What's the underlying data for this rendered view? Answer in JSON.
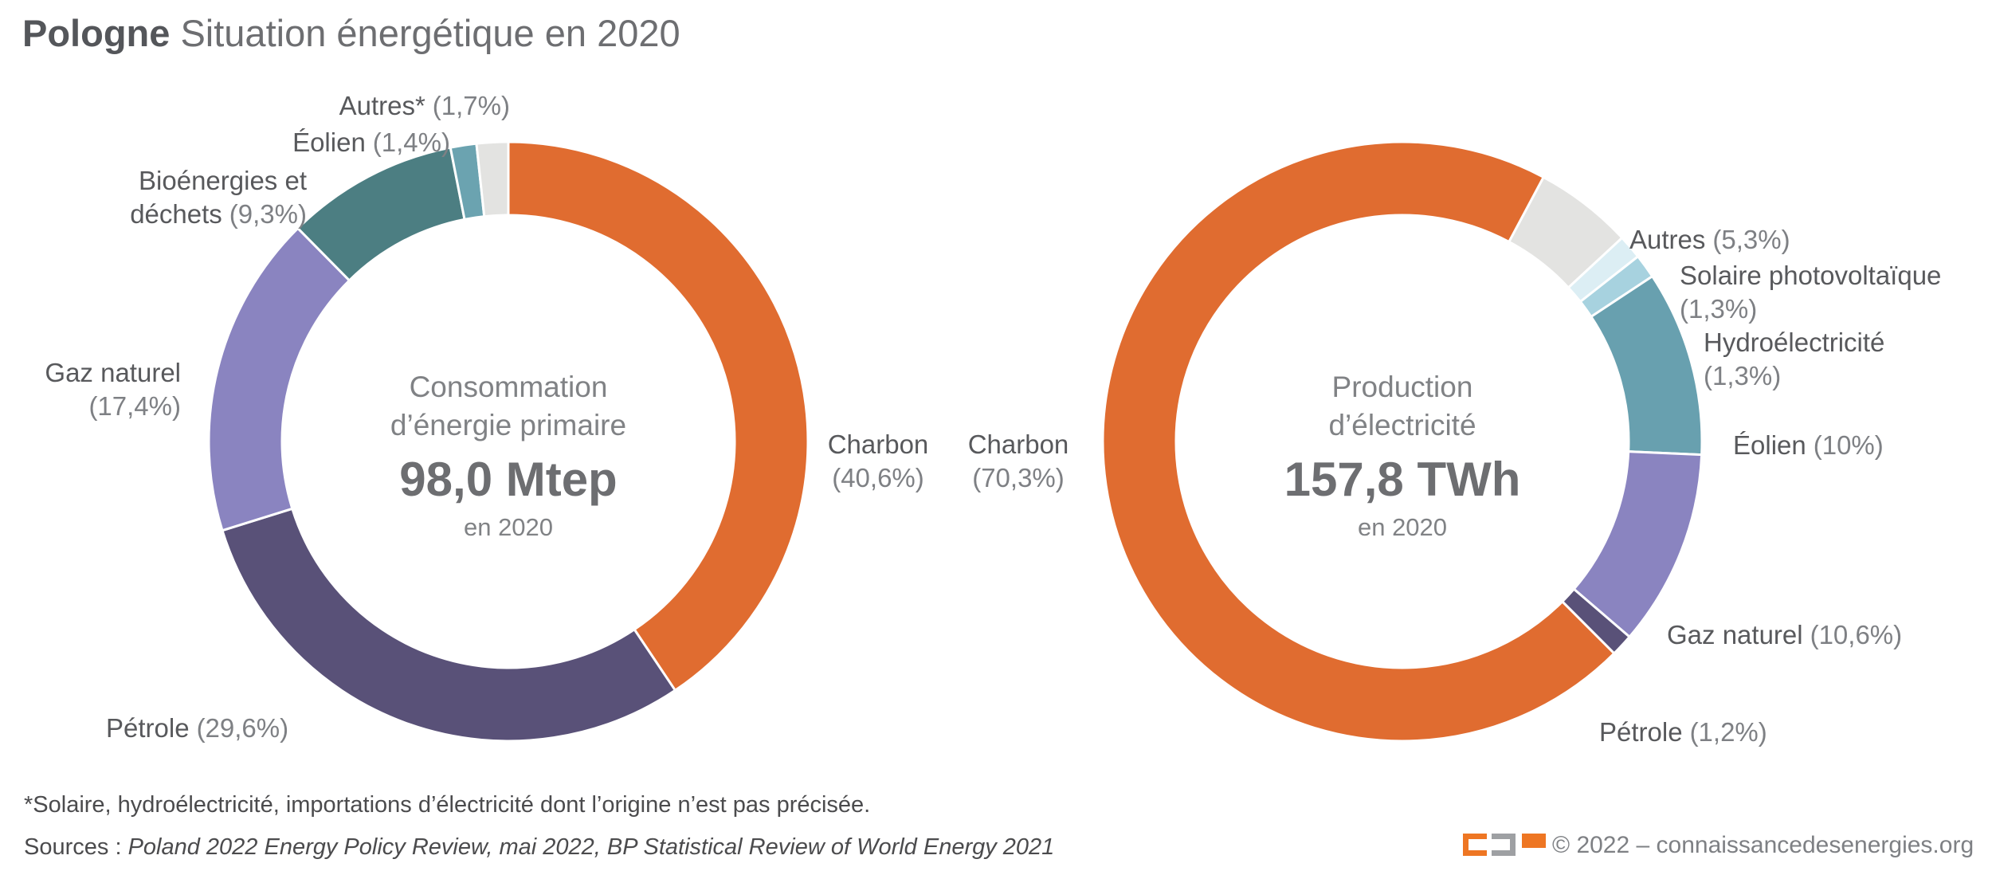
{
  "title": {
    "bold": "Pologne",
    "rest": " Situation énergétique en 2020"
  },
  "centers": {
    "left": {
      "line1": "Consommation",
      "line2": "d’énergie primaire",
      "value": "98,0 Mtep",
      "year": "en 2020"
    },
    "right": {
      "line1": "Production",
      "line2": "d’électricité",
      "value": "157,8 TWh",
      "year": "en 2020"
    }
  },
  "callouts": {
    "pc_autres": {
      "name": "Autres*",
      "pct": "(1,7%)"
    },
    "pc_eolien": {
      "name": "Éolien",
      "pct": "(1,4%)"
    },
    "pc_bio": {
      "line1": "Bioénergies et",
      "line2": "déchets",
      "pct": "(9,3%)"
    },
    "pc_gaz": {
      "name": "Gaz naturel",
      "pct": "(17,4%)"
    },
    "pc_petrole": {
      "name": "Pétrole",
      "pct": "(29,6%)"
    },
    "pc_charbon": {
      "name": "Charbon",
      "pct": "(40,6%)"
    },
    "el_charbon": {
      "name": "Charbon",
      "pct": "(70,3%)"
    },
    "el_autres": {
      "name": "Autres",
      "pct": "(5,3%)"
    },
    "el_solaire": {
      "name": "Solaire photovoltaïque",
      "pct": "(1,3%)"
    },
    "el_hydro": {
      "name": "Hydroélectricité",
      "pct": "(1,3%)"
    },
    "el_eolien": {
      "name": "Éolien",
      "pct": "(10%)"
    },
    "el_gaz": {
      "name": "Gaz naturel",
      "pct": "(10,6%)"
    },
    "el_petrole": {
      "name": "Pétrole",
      "pct": "(1,2%)"
    }
  },
  "chart_data": [
    {
      "type": "pie",
      "subtype": "donut",
      "id": "primary-energy",
      "title": "Consommation d’énergie primaire",
      "center_value": "98,0 Mtep",
      "center_note": "en 2020",
      "unit": "Mtep",
      "total": 98.0,
      "direction": "clockwise",
      "start_angle_deg": 0,
      "segments": [
        {
          "label": "Charbon",
          "pct": 40.6,
          "pct_label": "(40,6%)",
          "color": "#E06C30"
        },
        {
          "label": "Pétrole",
          "pct": 29.6,
          "pct_label": "(29,6%)",
          "color": "#595178"
        },
        {
          "label": "Gaz naturel",
          "pct": 17.4,
          "pct_label": "(17,4%)",
          "color": "#8A84C0"
        },
        {
          "label": "Bioénergies et déchets",
          "pct": 9.3,
          "pct_label": "(9,3%)",
          "color": "#4C7E82"
        },
        {
          "label": "Éolien",
          "pct": 1.4,
          "pct_label": "(1,4%)",
          "color": "#6BA3B0"
        },
        {
          "label": "Autres*",
          "pct": 1.7,
          "pct_label": "(1,7%)",
          "color": "#E3E3E1"
        }
      ]
    },
    {
      "type": "pie",
      "subtype": "donut",
      "id": "electricity-production",
      "title": "Production d’électricité",
      "center_value": "157,8 TWh",
      "center_note": "en 2020",
      "unit": "TWh",
      "total": 157.8,
      "direction": "clockwise",
      "start_angle_deg": 28.1,
      "segments": [
        {
          "label": "Autres",
          "pct": 5.3,
          "pct_label": "(5,3%)",
          "color": "#E3E3E1"
        },
        {
          "label": "Solaire photovoltaïque",
          "pct": 1.3,
          "pct_label": "(1,3%)",
          "color": "#DCEEF4"
        },
        {
          "label": "Hydroélectricité",
          "pct": 1.3,
          "pct_label": "(1,3%)",
          "color": "#A7D2DF"
        },
        {
          "label": "Éolien",
          "pct": 10.0,
          "pct_label": "(10%)",
          "color": "#68A0AF"
        },
        {
          "label": "Gaz naturel",
          "pct": 10.6,
          "pct_label": "(10,6%)",
          "color": "#8A84C0"
        },
        {
          "label": "Pétrole",
          "pct": 1.2,
          "pct_label": "(1,2%)",
          "color": "#595178"
        },
        {
          "label": "Charbon",
          "pct": 70.3,
          "pct_label": "(70,3%)",
          "color": "#E06C30"
        }
      ]
    }
  ],
  "footnote": "*Solaire, hydroélectricité, importations d’électricité dont l’origine n’est pas précisée.",
  "sources_prefix": "Sources : ",
  "sources_italic": "Poland 2022 Energy Policy Review, mai 2022, BP Statistical Review of World Energy 2021",
  "credit": "© 2022 – connaissancedesenergies.org",
  "brand_colors": {
    "orange": "#EE7623",
    "gray": "#9EA0A3"
  }
}
